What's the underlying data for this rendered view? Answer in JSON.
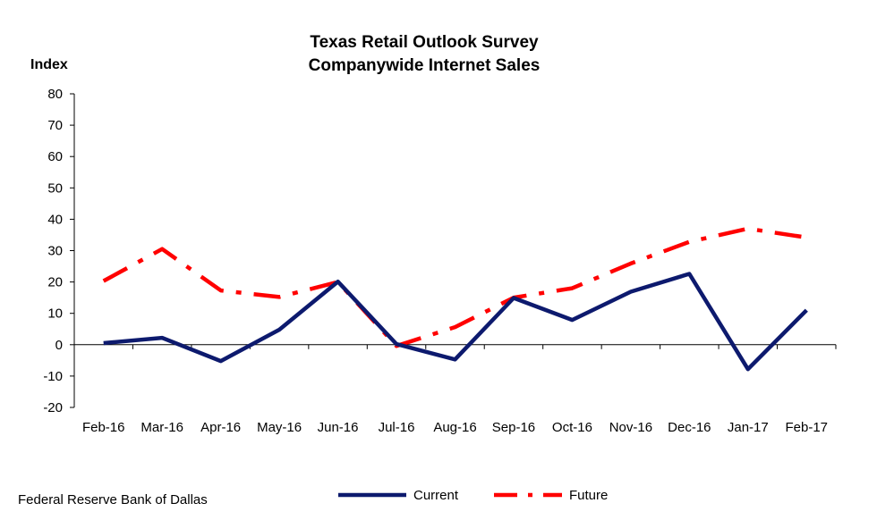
{
  "chart_data": {
    "type": "line",
    "title": "Texas Retail Outlook Survey",
    "subtitle": "Companywide Internet Sales",
    "ylabel": "Index",
    "xlabel": "",
    "ylim": [
      -20,
      80
    ],
    "yticks": [
      "80",
      "70",
      "60",
      "50",
      "40",
      "30",
      "20",
      "10",
      "0",
      "-10",
      "-20"
    ],
    "ytick_values": [
      80,
      70,
      60,
      50,
      40,
      30,
      20,
      10,
      0,
      -10,
      -20
    ],
    "categories": [
      "Feb-16",
      "Mar-16",
      "Apr-16",
      "May-16",
      "Jun-16",
      "Jul-16",
      "Aug-16",
      "Sep-16",
      "Oct-16",
      "Nov-16",
      "Dec-16",
      "Jan-17",
      "Feb-17"
    ],
    "series": [
      {
        "name": "Current",
        "color": "#0d1a6e",
        "style": "solid",
        "values": [
          0.5,
          2.2,
          -5.2,
          4.8,
          20.1,
          0.2,
          -4.7,
          14.9,
          7.9,
          16.9,
          22.6,
          -7.8,
          11.0
        ]
      },
      {
        "name": "Future",
        "color": "#ff0000",
        "style": "dash-dot",
        "values": [
          20.3,
          30.5,
          17.3,
          15.2,
          20.0,
          -0.4,
          5.6,
          15.0,
          18.0,
          25.9,
          32.8,
          37.0,
          34.2
        ]
      }
    ],
    "grid": false,
    "legend_position": "bottom"
  },
  "source": "Federal Reserve Bank of Dallas"
}
